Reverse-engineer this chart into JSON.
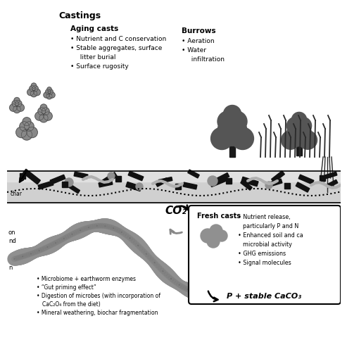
{
  "bg_color": "#ffffff",
  "soil_color": "#d0d0d0",
  "worm_color": "#999999",
  "text_color": "#000000",
  "castings_label": "Castings",
  "aging_casts_title": "Aging casts",
  "aging_casts_bullets": [
    "Nutrient and C conservation",
    "Stable aggregates, surface litter burial",
    "Surface rugosity"
  ],
  "burrows_title": "Burrows",
  "burrows_bullets": [
    "Aeration",
    "Water infiltration"
  ],
  "co2_label": "CO₂",
  "fresh_casts_title": "Fresh casts",
  "fresh_casts_bullets": [
    "Nutrient release, particularly P and N",
    "Enhanced soil and ca microbial activity",
    "GHG emissions",
    "Signal molecules"
  ],
  "p_label": "P + stable CaCO₃",
  "left_bullets": [
    "Microbiome + earthworm enzymes",
    "“Gut priming effect”",
    "Digestion of microbes (with incorporation of CaC₂O₄ from the diet)",
    "Mineral weathering, biochar fragmentation"
  ],
  "char_label": "char"
}
